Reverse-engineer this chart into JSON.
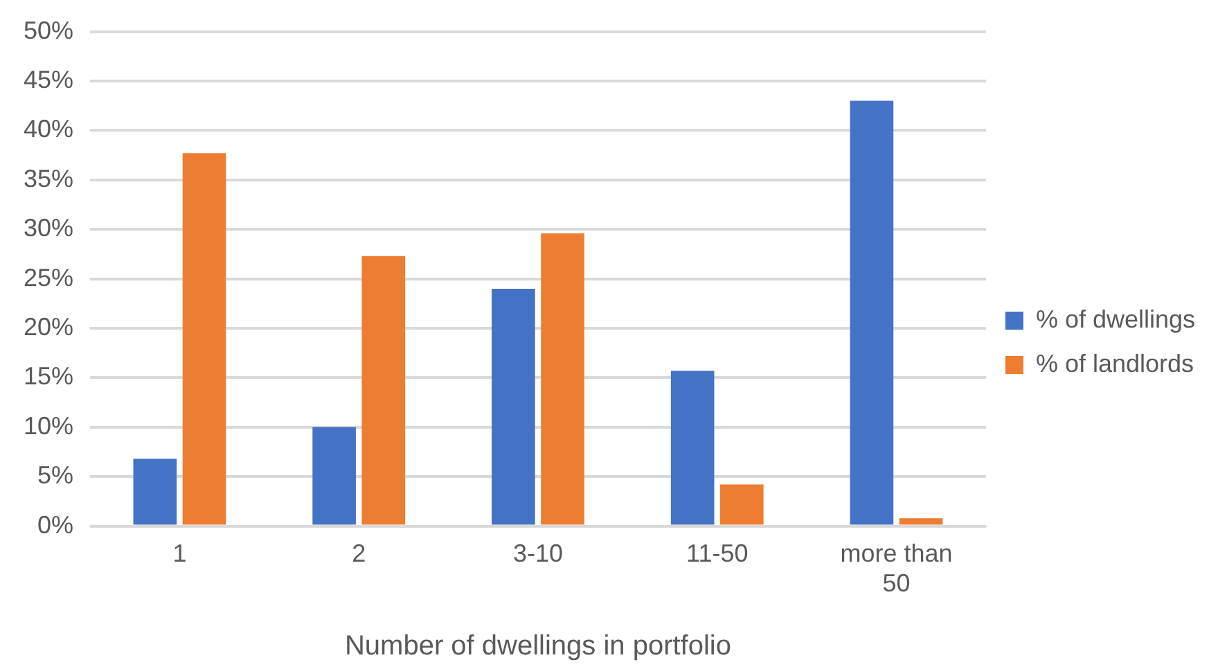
{
  "chart_data": {
    "type": "bar",
    "xlabel": "Number of dwellings in portfolio",
    "categories": [
      "1",
      "2",
      "3-10",
      "11-50",
      "more than 50"
    ],
    "series": [
      {
        "name": "% of dwellings",
        "color": "#4472c4",
        "values": [
          6.8,
          10.0,
          24.0,
          15.7,
          43.0
        ]
      },
      {
        "name": "% of landlords",
        "color": "#ed7d31",
        "values": [
          37.7,
          27.3,
          29.6,
          4.2,
          0.8
        ]
      }
    ],
    "ylim": [
      0,
      50
    ],
    "yticks": [
      {
        "value": 0,
        "label": "0%"
      },
      {
        "value": 5,
        "label": "5%"
      },
      {
        "value": 10,
        "label": "10%"
      },
      {
        "value": 15,
        "label": "15%"
      },
      {
        "value": 20,
        "label": "20%"
      },
      {
        "value": 25,
        "label": "25%"
      },
      {
        "value": 30,
        "label": "30%"
      },
      {
        "value": 35,
        "label": "35%"
      },
      {
        "value": 40,
        "label": "40%"
      },
      {
        "value": 45,
        "label": "45%"
      },
      {
        "value": 50,
        "label": "50%"
      }
    ],
    "grid": "y",
    "legend": "right"
  }
}
